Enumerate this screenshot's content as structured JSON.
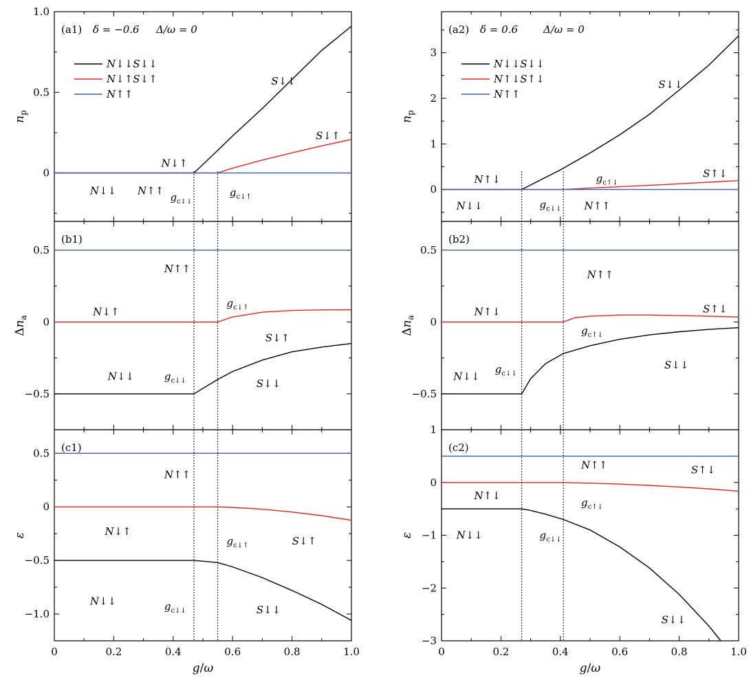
{
  "colors": {
    "black": "#000000",
    "red": "#e8231b",
    "blue": "#3a5dae",
    "dotted": "#000000"
  },
  "chart_data": [
    {
      "id": "a1",
      "type": "line",
      "column": 0,
      "row": 0,
      "panel_label": "(a1)",
      "title_parts": [
        "δ = −0.6",
        "Δ/ω = 0"
      ],
      "ylabel": "n_p",
      "xlim": [
        0,
        1
      ],
      "ylim": [
        -0.3,
        1.0
      ],
      "yticks": [
        -0.0,
        0.5,
        1.0
      ],
      "ytick_labels": [
        "0",
        "0.5",
        "1.0"
      ],
      "xticks": [
        0,
        0.2,
        0.4,
        0.6,
        0.8,
        1.0
      ],
      "xtick_labels": [],
      "legend": [
        "N↓↓S↓↓",
        "N↓↑S↓↑",
        "N↑↑"
      ],
      "legend_placement": "top-left",
      "series": [
        {
          "color": "black",
          "x": [
            0,
            0.47,
            0.55,
            0.6,
            0.7,
            0.8,
            0.9,
            1.0
          ],
          "y": [
            0,
            0,
            0.14,
            0.23,
            0.4,
            0.58,
            0.76,
            0.91
          ]
        },
        {
          "color": "red",
          "x": [
            0,
            0.55,
            0.6,
            0.7,
            0.8,
            0.9,
            1.0
          ],
          "y": [
            0,
            0,
            0.03,
            0.08,
            0.125,
            0.168,
            0.208
          ]
        },
        {
          "color": "blue",
          "x": [
            0,
            1.0
          ],
          "y": [
            0,
            0
          ]
        }
      ],
      "annotations": [
        {
          "text": "S↓↓",
          "x": 0.73,
          "y": 0.57
        },
        {
          "text": "S↓↑",
          "x": 0.88,
          "y": 0.23
        },
        {
          "text": "N↓↑",
          "x": 0.36,
          "y": 0.06
        },
        {
          "text": "N↓↓",
          "x": 0.12,
          "y": -0.11
        },
        {
          "text": "N↑↑",
          "x": 0.28,
          "y": -0.11
        },
        {
          "text": "g_c↓↓",
          "x": 0.39,
          "y": -0.15
        },
        {
          "text": "g_c↓↑",
          "x": 0.59,
          "y": -0.12
        }
      ]
    },
    {
      "id": "b1",
      "type": "line",
      "column": 0,
      "row": 1,
      "panel_label": "(b1)",
      "ylabel": "Δn_a",
      "xlim": [
        0,
        1
      ],
      "ylim": [
        -0.75,
        0.7
      ],
      "yticks": [
        -0.5,
        0,
        0.5
      ],
      "ytick_labels": [
        "−0.5",
        "0",
        "0.5"
      ],
      "xticks": [
        0,
        0.2,
        0.4,
        0.6,
        0.8,
        1.0
      ],
      "xtick_labels": [],
      "series": [
        {
          "color": "blue",
          "x": [
            0,
            1.0
          ],
          "y": [
            0.5,
            0.5
          ]
        },
        {
          "color": "red",
          "x": [
            0,
            0.55,
            0.6,
            0.7,
            0.8,
            0.9,
            1.0
          ],
          "y": [
            0,
            0,
            0.035,
            0.068,
            0.08,
            0.084,
            0.085
          ]
        },
        {
          "color": "black",
          "x": [
            0,
            0.47,
            0.55,
            0.6,
            0.7,
            0.8,
            0.9,
            1.0
          ],
          "y": [
            -0.5,
            -0.5,
            -0.4,
            -0.345,
            -0.265,
            -0.208,
            -0.175,
            -0.15
          ]
        }
      ],
      "annotations": [
        {
          "text": "N↑↑",
          "x": 0.37,
          "y": 0.37
        },
        {
          "text": "N↓↑",
          "x": 0.13,
          "y": 0.07
        },
        {
          "text": "g_c↓↑",
          "x": 0.58,
          "y": 0.13
        },
        {
          "text": "S↓↑",
          "x": 0.71,
          "y": -0.11
        },
        {
          "text": "N↓↓",
          "x": 0.18,
          "y": -0.38
        },
        {
          "text": "g_c↓↓",
          "x": 0.37,
          "y": -0.38
        },
        {
          "text": "S↓↓",
          "x": 0.68,
          "y": -0.43
        }
      ]
    },
    {
      "id": "c1",
      "type": "line",
      "column": 0,
      "row": 2,
      "panel_label": "(c1)",
      "ylabel": "ε",
      "xlim": [
        0,
        1
      ],
      "ylim": [
        -1.25,
        0.72
      ],
      "yticks": [
        -1.0,
        -0.5,
        0,
        0.5
      ],
      "ytick_labels": [
        "−1.0",
        "−0.5",
        "0",
        "0.5"
      ],
      "xticks": [
        0,
        0.2,
        0.4,
        0.6,
        0.8,
        1.0
      ],
      "xtick_labels": [
        "0",
        "0.2",
        "0.4",
        "0.6",
        "0.8",
        "1.0"
      ],
      "xlabel": "g/ω",
      "series": [
        {
          "color": "blue",
          "x": [
            0,
            1.0
          ],
          "y": [
            0.5,
            0.5
          ]
        },
        {
          "color": "red",
          "x": [
            0,
            0.55,
            0.6,
            0.7,
            0.8,
            0.9,
            1.0
          ],
          "y": [
            0,
            0,
            -0.005,
            -0.022,
            -0.048,
            -0.082,
            -0.125
          ]
        },
        {
          "color": "black",
          "x": [
            0,
            0.47,
            0.55,
            0.6,
            0.7,
            0.8,
            0.9,
            1.0
          ],
          "y": [
            -0.5,
            -0.5,
            -0.52,
            -0.56,
            -0.66,
            -0.78,
            -0.91,
            -1.06
          ]
        }
      ],
      "annotations": [
        {
          "text": "N↑↑",
          "x": 0.37,
          "y": 0.3
        },
        {
          "text": "N↓↑",
          "x": 0.17,
          "y": -0.23
        },
        {
          "text": "g_c↓↑",
          "x": 0.58,
          "y": -0.32
        },
        {
          "text": "S↓↑",
          "x": 0.8,
          "y": -0.32
        },
        {
          "text": "N↓↓",
          "x": 0.12,
          "y": -0.88
        },
        {
          "text": "g_c↓↓",
          "x": 0.37,
          "y": -0.93
        },
        {
          "text": "S↓↓",
          "x": 0.68,
          "y": -0.96
        }
      ]
    },
    {
      "id": "a2",
      "type": "line",
      "column": 1,
      "row": 0,
      "panel_label": "(a2)",
      "title_parts": [
        "δ = 0.6",
        "Δ/ω = 0"
      ],
      "ylabel": "n_p",
      "xlim": [
        0,
        1
      ],
      "ylim": [
        -0.7,
        3.9
      ],
      "yticks": [
        0,
        1,
        2,
        3
      ],
      "ytick_labels": [
        "0",
        "1",
        "2",
        "3"
      ],
      "xticks": [
        0,
        0.2,
        0.4,
        0.6,
        0.8,
        1.0
      ],
      "xtick_labels": [],
      "legend": [
        "N↓↓S↓↓",
        "N↑↓S↑↓",
        "N↑↑"
      ],
      "legend_placement": "top-left",
      "series": [
        {
          "color": "black",
          "x": [
            0,
            0.27,
            0.3,
            0.4,
            0.5,
            0.6,
            0.7,
            0.8,
            0.9,
            1.0
          ],
          "y": [
            0,
            0,
            0.1,
            0.43,
            0.8,
            1.2,
            1.65,
            2.18,
            2.73,
            3.37
          ]
        },
        {
          "color": "red",
          "x": [
            0,
            0.41,
            0.5,
            0.6,
            0.7,
            0.8,
            0.9,
            1.0
          ],
          "y": [
            0,
            0,
            0.03,
            0.06,
            0.09,
            0.125,
            0.16,
            0.195
          ]
        },
        {
          "color": "blue",
          "x": [
            0,
            1.0
          ],
          "y": [
            0,
            0
          ]
        }
      ],
      "annotations": [
        {
          "text": "S↓↓",
          "x": 0.73,
          "y": 2.3
        },
        {
          "text": "S↑↓",
          "x": 0.88,
          "y": 0.35
        },
        {
          "text": "N↑↓",
          "x": 0.11,
          "y": 0.22
        },
        {
          "text": "g_c↑↓",
          "x": 0.52,
          "y": 0.24
        },
        {
          "text": "N↓↓",
          "x": 0.05,
          "y": -0.36
        },
        {
          "text": "g_c↓↓",
          "x": 0.33,
          "y": -0.33
        },
        {
          "text": "N↑↑",
          "x": 0.48,
          "y": -0.36
        }
      ]
    },
    {
      "id": "b2",
      "type": "line",
      "column": 1,
      "row": 1,
      "panel_label": "(b2)",
      "ylabel": "Δn_a",
      "xlim": [
        0,
        1
      ],
      "ylim": [
        -0.75,
        0.7
      ],
      "yticks": [
        -0.5,
        0,
        0.5
      ],
      "ytick_labels": [
        "−0.5",
        "0",
        "0.5"
      ],
      "xticks": [
        0,
        0.2,
        0.4,
        0.6,
        0.8,
        1.0
      ],
      "xtick_labels": [],
      "series": [
        {
          "color": "blue",
          "x": [
            0,
            1.0
          ],
          "y": [
            0.5,
            0.5
          ]
        },
        {
          "color": "red",
          "x": [
            0,
            0.41,
            0.45,
            0.5,
            0.6,
            0.7,
            0.8,
            0.9,
            1.0
          ],
          "y": [
            0,
            0,
            0.03,
            0.04,
            0.048,
            0.048,
            0.045,
            0.04,
            0.035
          ]
        },
        {
          "color": "black",
          "x": [
            0,
            0.27,
            0.3,
            0.35,
            0.41,
            0.5,
            0.6,
            0.7,
            0.8,
            0.9,
            1.0
          ],
          "y": [
            -0.5,
            -0.5,
            -0.395,
            -0.29,
            -0.22,
            -0.165,
            -0.12,
            -0.09,
            -0.068,
            -0.052,
            -0.04
          ]
        }
      ],
      "annotations": [
        {
          "text": "N↑↑",
          "x": 0.49,
          "y": 0.33
        },
        {
          "text": "N↑↓",
          "x": 0.11,
          "y": 0.07
        },
        {
          "text": "S↑↓",
          "x": 0.88,
          "y": 0.09
        },
        {
          "text": "g_c↑↓",
          "x": 0.47,
          "y": -0.06
        },
        {
          "text": "N↓↓",
          "x": 0.04,
          "y": -0.38
        },
        {
          "text": "g_c↓↓",
          "x": 0.18,
          "y": -0.33
        },
        {
          "text": "S↓↓",
          "x": 0.75,
          "y": -0.3
        }
      ]
    },
    {
      "id": "c2",
      "type": "line",
      "column": 1,
      "row": 2,
      "panel_label": "(c2)",
      "ylabel": "ε",
      "xlim": [
        0,
        1
      ],
      "ylim": [
        -3,
        1
      ],
      "yticks": [
        -3,
        -2,
        -1,
        0,
        1
      ],
      "ytick_labels": [
        "−3",
        "−2",
        "−1",
        "0",
        "1"
      ],
      "xticks": [
        0,
        0.2,
        0.4,
        0.6,
        0.8,
        1.0
      ],
      "xtick_labels": [
        "0",
        "0.2",
        "0.4",
        "0.6",
        "0.8",
        "1.0"
      ],
      "xlabel": "g/ω",
      "series": [
        {
          "color": "blue",
          "x": [
            0,
            1.0
          ],
          "y": [
            0.5,
            0.5
          ]
        },
        {
          "color": "red",
          "x": [
            0,
            0.41,
            0.5,
            0.6,
            0.7,
            0.8,
            0.9,
            1.0
          ],
          "y": [
            0,
            0,
            -0.012,
            -0.03,
            -0.055,
            -0.085,
            -0.12,
            -0.165
          ]
        },
        {
          "color": "black",
          "x": [
            0,
            0.27,
            0.3,
            0.35,
            0.41,
            0.5,
            0.6,
            0.7,
            0.8,
            0.9,
            0.94
          ],
          "y": [
            -0.5,
            -0.5,
            -0.53,
            -0.6,
            -0.7,
            -0.9,
            -1.22,
            -1.62,
            -2.12,
            -2.72,
            -3.0
          ]
        }
      ],
      "annotations": [
        {
          "text": "N↑↑",
          "x": 0.47,
          "y": 0.33
        },
        {
          "text": "S↑↓",
          "x": 0.84,
          "y": 0.24
        },
        {
          "text": "N↑↓",
          "x": 0.11,
          "y": -0.25
        },
        {
          "text": "g_c↑↓",
          "x": 0.47,
          "y": -0.38
        },
        {
          "text": "N↓↓",
          "x": 0.05,
          "y": -1.0
        },
        {
          "text": "g_c↓↓",
          "x": 0.33,
          "y": -1.0
        },
        {
          "text": "S↓↓",
          "x": 0.74,
          "y": -2.6
        }
      ]
    }
  ],
  "critical_lines": [
    {
      "column": 0,
      "x": 0.47
    },
    {
      "column": 0,
      "x": 0.55
    },
    {
      "column": 1,
      "x": 0.27
    },
    {
      "column": 1,
      "x": 0.41
    }
  ]
}
